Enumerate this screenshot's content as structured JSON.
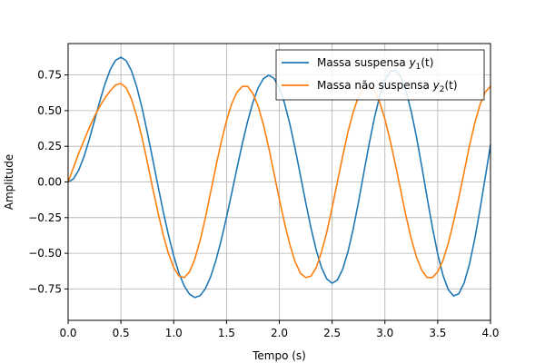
{
  "chart_data": {
    "type": "line",
    "title": "",
    "xlabel": "Tempo (s)",
    "ylabel": "Amplitude",
    "xlim": [
      0.0,
      4.0
    ],
    "ylim": [
      -0.97,
      0.97
    ],
    "grid": true,
    "legend_position": "top-right",
    "x_ticks": [
      "0.0",
      "0.5",
      "1.0",
      "1.5",
      "2.0",
      "2.5",
      "3.0",
      "3.5",
      "4.0"
    ],
    "y_ticks": [
      "−0.75",
      "−0.50",
      "−0.25",
      "0.00",
      "0.25",
      "0.50",
      "0.75"
    ],
    "x_tick_values": [
      0.0,
      0.5,
      1.0,
      1.5,
      2.0,
      2.5,
      3.0,
      3.5,
      4.0
    ],
    "y_tick_values": [
      -0.75,
      -0.5,
      -0.25,
      0.0,
      0.25,
      0.5,
      0.75
    ],
    "series": [
      {
        "name": "Massa suspensa y1(t)",
        "legend_base": "Massa suspensa ",
        "legend_var": "y",
        "legend_sub": "1",
        "legend_tail": "(t)",
        "color": "#1f77b4",
        "x": [
          0.0,
          0.05,
          0.1,
          0.15,
          0.2,
          0.25,
          0.3,
          0.35,
          0.4,
          0.45,
          0.5,
          0.55,
          0.6,
          0.65,
          0.7,
          0.75,
          0.8,
          0.85,
          0.9,
          0.95,
          1.0,
          1.05,
          1.1,
          1.15,
          1.2,
          1.25,
          1.3,
          1.35,
          1.4,
          1.45,
          1.5,
          1.55,
          1.6,
          1.65,
          1.7,
          1.75,
          1.8,
          1.85,
          1.9,
          1.95,
          2.0,
          2.05,
          2.1,
          2.15,
          2.2,
          2.25,
          2.3,
          2.35,
          2.4,
          2.45,
          2.5,
          2.55,
          2.6,
          2.65,
          2.7,
          2.75,
          2.8,
          2.85,
          2.9,
          2.95,
          3.0,
          3.05,
          3.1,
          3.15,
          3.2,
          3.25,
          3.3,
          3.35,
          3.4,
          3.45,
          3.5,
          3.55,
          3.6,
          3.65,
          3.7,
          3.75,
          3.8,
          3.85,
          3.9,
          3.95,
          4.0
        ],
        "y": [
          0.0,
          0.021,
          0.082,
          0.177,
          0.297,
          0.431,
          0.566,
          0.689,
          0.789,
          0.853,
          0.874,
          0.85,
          0.779,
          0.666,
          0.519,
          0.347,
          0.163,
          -0.024,
          -0.205,
          -0.372,
          -0.519,
          -0.64,
          -0.73,
          -0.787,
          -0.81,
          -0.797,
          -0.747,
          -0.664,
          -0.549,
          -0.408,
          -0.247,
          -0.075,
          0.1,
          0.27,
          0.425,
          0.558,
          0.66,
          0.725,
          0.748,
          0.726,
          0.659,
          0.55,
          0.405,
          0.233,
          0.046,
          -0.144,
          -0.323,
          -0.479,
          -0.601,
          -0.68,
          -0.71,
          -0.687,
          -0.612,
          -0.49,
          -0.329,
          -0.14,
          0.063,
          0.263,
          0.447,
          0.601,
          0.713,
          0.775,
          0.783,
          0.736,
          0.637,
          0.492,
          0.311,
          0.105,
          -0.111,
          -0.319,
          -0.505,
          -0.654,
          -0.755,
          -0.799,
          -0.783,
          -0.708,
          -0.578,
          -0.403,
          -0.195,
          0.031,
          0.259
        ]
      },
      {
        "name": "Massa não suspensa y2(t)",
        "legend_base": "Massa não suspensa ",
        "legend_var": "y",
        "legend_sub": "2",
        "legend_tail": "(t)",
        "color": "#ff7f0e",
        "x": [
          0.0,
          0.05,
          0.1,
          0.15,
          0.2,
          0.25,
          0.3,
          0.35,
          0.4,
          0.45,
          0.5,
          0.55,
          0.6,
          0.65,
          0.7,
          0.75,
          0.8,
          0.85,
          0.9,
          0.95,
          1.0,
          1.05,
          1.1,
          1.15,
          1.2,
          1.25,
          1.3,
          1.35,
          1.4,
          1.45,
          1.5,
          1.55,
          1.6,
          1.65,
          1.7,
          1.75,
          1.8,
          1.85,
          1.9,
          1.95,
          2.0,
          2.05,
          2.1,
          2.15,
          2.2,
          2.25,
          2.3,
          2.35,
          2.4,
          2.45,
          2.5,
          2.55,
          2.6,
          2.65,
          2.7,
          2.75,
          2.8,
          2.85,
          2.9,
          2.95,
          3.0,
          3.05,
          3.1,
          3.15,
          3.2,
          3.25,
          3.3,
          3.35,
          3.4,
          3.45,
          3.5,
          3.55,
          3.6,
          3.65,
          3.7,
          3.75,
          3.8,
          3.85,
          3.9,
          3.95,
          4.0
        ],
        "y": [
          0.0,
          0.1,
          0.2,
          0.29,
          0.38,
          0.46,
          0.53,
          0.59,
          0.64,
          0.68,
          0.69,
          0.66,
          0.58,
          0.46,
          0.31,
          0.14,
          -0.04,
          -0.21,
          -0.37,
          -0.5,
          -0.6,
          -0.66,
          -0.67,
          -0.63,
          -0.54,
          -0.41,
          -0.25,
          -0.07,
          0.11,
          0.28,
          0.43,
          0.55,
          0.63,
          0.67,
          0.67,
          0.62,
          0.53,
          0.4,
          0.24,
          0.06,
          -0.12,
          -0.29,
          -0.44,
          -0.56,
          -0.64,
          -0.67,
          -0.66,
          -0.6,
          -0.49,
          -0.35,
          -0.18,
          0.0,
          0.18,
          0.35,
          0.49,
          0.6,
          0.66,
          0.67,
          0.64,
          0.56,
          0.44,
          0.29,
          0.12,
          -0.06,
          -0.24,
          -0.4,
          -0.53,
          -0.62,
          -0.67,
          -0.67,
          -0.63,
          -0.55,
          -0.43,
          -0.28,
          -0.11,
          0.07,
          0.25,
          0.41,
          0.54,
          0.63,
          0.67
        ]
      }
    ]
  }
}
